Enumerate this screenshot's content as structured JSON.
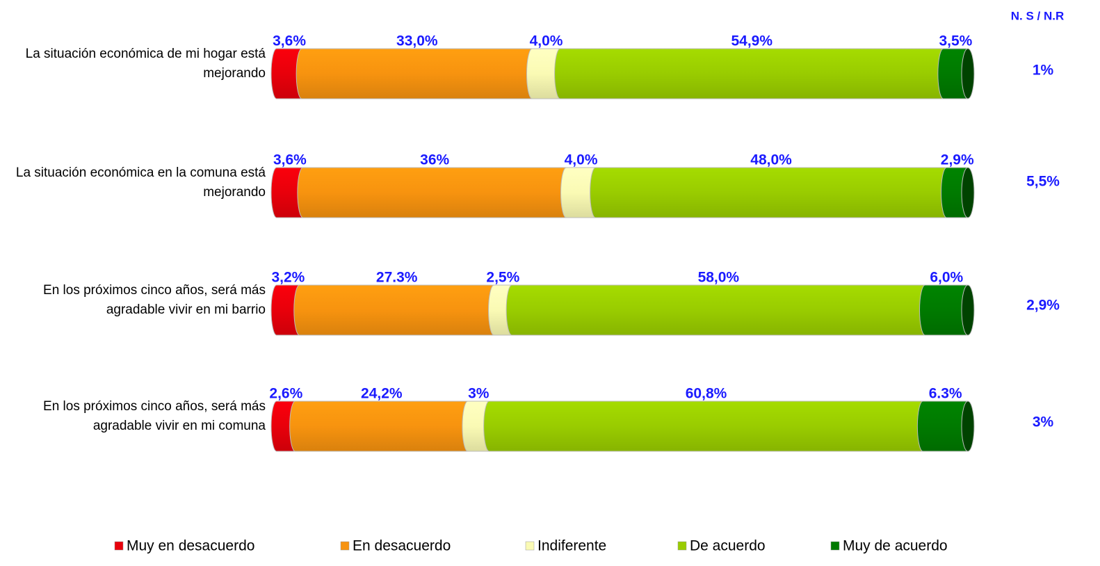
{
  "chart_data": {
    "type": "stacked-bar-horizontal",
    "categories": [
      "La situación económica de mi hogar está mejorando",
      "La situación económica en la comuna está mejorando",
      "En los próximos cinco años, será más agradable vivir en mi barrio",
      "En los próximos cinco años, será más agradable vivir en mi comuna"
    ],
    "series": [
      {
        "name": "Muy en desacuerdo",
        "color": "#e8000b",
        "values": [
          3.6,
          3.6,
          3.2,
          2.6
        ],
        "value_labels": [
          "3,6%",
          "3,6%",
          "3,2%",
          "2,6%"
        ]
      },
      {
        "name": "En desacuerdo",
        "color": "#f7930f",
        "values": [
          33.0,
          36,
          27.3,
          24.2
        ],
        "value_labels": [
          "33,0%",
          "36%",
          "27.3%",
          "24,2%"
        ]
      },
      {
        "name": "Indiferente",
        "color": "#fafab4",
        "values": [
          4.0,
          4.0,
          2.5,
          3
        ],
        "value_labels": [
          "4,0%",
          "4,0%",
          "2,5%",
          "3%"
        ]
      },
      {
        "name": "De acuerdo",
        "color": "#99cc00",
        "values": [
          54.9,
          48.0,
          58.0,
          60.8
        ],
        "value_labels": [
          "54,9%",
          "48,0%",
          "58,0%",
          "60,8%"
        ]
      },
      {
        "name": "Muy de acuerdo",
        "color": "#007a00",
        "values": [
          3.5,
          2.9,
          6.0,
          6.3
        ],
        "value_labels": [
          "3,5%",
          "2,9%",
          "6,0%",
          "6.3%"
        ]
      }
    ],
    "ns_nr": {
      "title": "N. S / N.R",
      "values": [
        1,
        5.5,
        2.9,
        3
      ],
      "value_labels": [
        "1%",
        "5,5%",
        "2,9%",
        "3%"
      ]
    }
  }
}
